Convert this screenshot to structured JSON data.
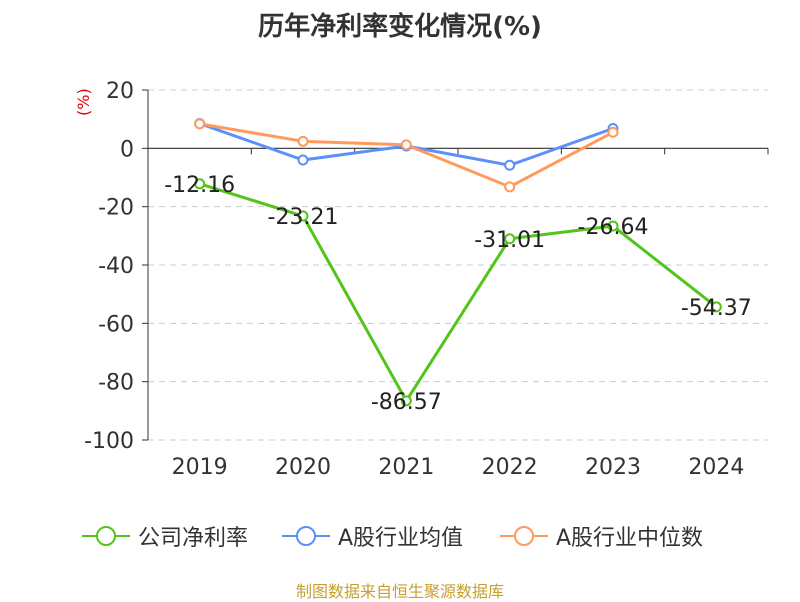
{
  "title": "历年净利率变化情况(%)",
  "unit_label": "(%)",
  "source": "制图数据来自恒生聚源数据库",
  "legend": [
    {
      "label": "公司净利率",
      "color": "#52c41a"
    },
    {
      "label": "A股行业均值",
      "color": "#5b8ff9"
    },
    {
      "label": "A股行业中位数",
      "color": "#ff9a5c"
    }
  ],
  "chart_data": {
    "type": "line",
    "title": "历年净利率变化情况(%)",
    "ylabel": "(%)",
    "xlabel": "",
    "categories": [
      "2019",
      "2020",
      "2021",
      "2022",
      "2023",
      "2024"
    ],
    "ylim": [
      -100,
      20
    ],
    "yticks": [
      20,
      0,
      -20,
      -40,
      -60,
      -80,
      -100
    ],
    "grid": true,
    "legend_position": "bottom",
    "series": [
      {
        "name": "公司净利率",
        "color": "#52c41a",
        "values": [
          -12.16,
          -23.21,
          -86.57,
          -31.01,
          -26.64,
          -54.37
        ],
        "labels": [
          "-12.16",
          "-23.21",
          "-86.57",
          "-31.01",
          "-26.64",
          "-54.37"
        ]
      },
      {
        "name": "A股行业均值",
        "color": "#5b8ff9",
        "values": [
          8.5,
          -4.0,
          0.8,
          -5.8,
          6.8,
          null
        ]
      },
      {
        "name": "A股行业中位数",
        "color": "#ff9a5c",
        "values": [
          8.4,
          2.4,
          1.2,
          -13.2,
          5.5,
          null
        ]
      }
    ]
  }
}
